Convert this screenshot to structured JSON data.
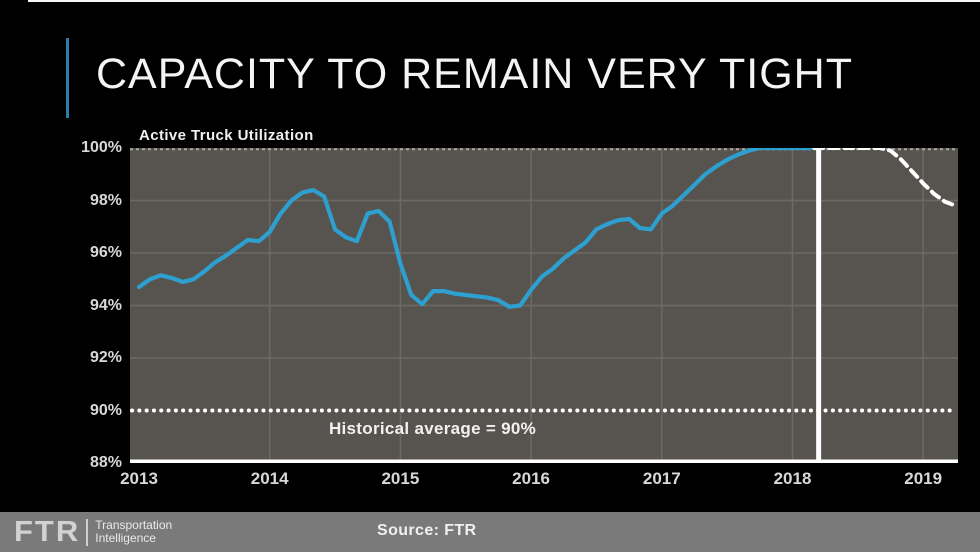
{
  "slide": {
    "title": "CAPACITY TO REMAIN VERY TIGHT",
    "accent_color": "#2e7da6",
    "background_color": "#000000"
  },
  "footer": {
    "logo_text": "FTR",
    "logo_sub_line1": "Transportation",
    "logo_sub_line2": "Intelligence",
    "source_label": "Source: FTR",
    "bar_color": "#7a7a7a"
  },
  "chart_data": {
    "type": "line",
    "title": "Active Truck Utilization",
    "plot_bg_color": "#57544f",
    "grid": true,
    "grid_color": "#6c6a64",
    "ylim": [
      88,
      100
    ],
    "xlim": [
      2013,
      2019.27
    ],
    "y_ticks": [
      100,
      98,
      96,
      94,
      92,
      90,
      88
    ],
    "y_tick_labels": [
      "100%",
      "98%",
      "96%",
      "94%",
      "92%",
      "90%",
      "88%"
    ],
    "x_ticks": [
      2013,
      2014,
      2015,
      2016,
      2017,
      2018,
      2019
    ],
    "x_tick_labels": [
      "2013",
      "2014",
      "2015",
      "2016",
      "2017",
      "2018",
      "2019"
    ],
    "annotation": "Historical average = 90%",
    "historical_average": 90,
    "historical_average_line_color": "#ffffff",
    "now_line_x": 2018.2,
    "now_line_color": "#ffffff",
    "series": [
      {
        "name": "Active Truck Utilization (actual)",
        "color": "#2da0cf",
        "style": "solid",
        "start_year": 2013.0,
        "step_years": 0.08333,
        "values": [
          94.7,
          95.0,
          95.15,
          95.05,
          94.9,
          95.0,
          95.3,
          95.65,
          95.9,
          96.2,
          96.5,
          96.45,
          96.8,
          97.5,
          98.0,
          98.3,
          98.4,
          98.15,
          96.9,
          96.6,
          96.45,
          97.5,
          97.6,
          97.2,
          95.6,
          94.4,
          94.05,
          94.55,
          94.55,
          94.45,
          94.4,
          94.35,
          94.3,
          94.2,
          93.95,
          94.0,
          94.6,
          95.1,
          95.4,
          95.8,
          96.1,
          96.4,
          96.9,
          97.1,
          97.25,
          97.3,
          96.95,
          96.9,
          97.5,
          97.8,
          98.2,
          98.6,
          99.0,
          99.3,
          99.55,
          99.75,
          99.9,
          100.0,
          100.0,
          100.0,
          100.0,
          100.0,
          100.0
        ]
      },
      {
        "name": "Forecast",
        "color": "#ffffff",
        "style": "dashed",
        "start_year": 2018.1667,
        "step_years": 0.08333,
        "values": [
          100.0,
          100.0,
          100.0,
          100.0,
          100.0,
          100.0,
          100.0,
          99.9,
          99.55,
          99.1,
          98.65,
          98.25,
          97.95,
          97.8
        ]
      }
    ]
  }
}
